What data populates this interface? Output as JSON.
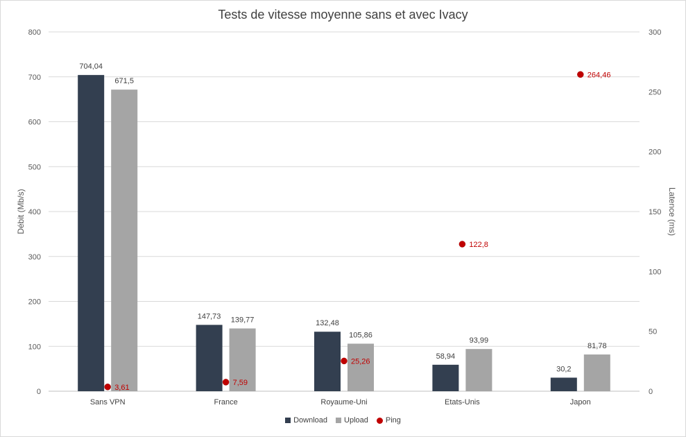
{
  "chart_data": {
    "type": "bar",
    "title": "Tests de vitesse moyenne sans et avec Ivacy",
    "ylabel": "Débit (Mb/s)",
    "y2label": "Latence (ms)",
    "ylim": [
      0,
      800
    ],
    "y2lim": [
      0,
      300
    ],
    "yticks": [
      "0",
      "100",
      "200",
      "300",
      "400",
      "500",
      "600",
      "700",
      "800"
    ],
    "y2ticks": [
      "0",
      "50",
      "100",
      "150",
      "200",
      "250",
      "300"
    ],
    "categories": [
      "Sans VPN",
      "France",
      "Royaume-Uni",
      "Etats-Unis",
      "Japon"
    ],
    "series": [
      {
        "name": "Download",
        "kind": "bar",
        "axis": "left",
        "color": "#333f50",
        "values": [
          704.04,
          147.73,
          132.48,
          58.94,
          30.2
        ],
        "labels": [
          "704,04",
          "147,73",
          "132,48",
          "58,94",
          "30,2"
        ]
      },
      {
        "name": "Upload",
        "kind": "bar",
        "axis": "left",
        "color": "#a5a5a5",
        "values": [
          671.5,
          139.77,
          105.86,
          93.99,
          81.78
        ],
        "labels": [
          "671,5",
          "139,77",
          "105,86",
          "93,99",
          "81,78"
        ]
      },
      {
        "name": "Ping",
        "kind": "scatter",
        "axis": "right",
        "color": "#c00000",
        "values": [
          3.61,
          7.59,
          25.26,
          122.8,
          264.46
        ],
        "labels": [
          "3,61",
          "7,59",
          "25,26",
          "122,8",
          "264,46"
        ]
      }
    ],
    "grid": true,
    "legend_position": "bottom"
  }
}
